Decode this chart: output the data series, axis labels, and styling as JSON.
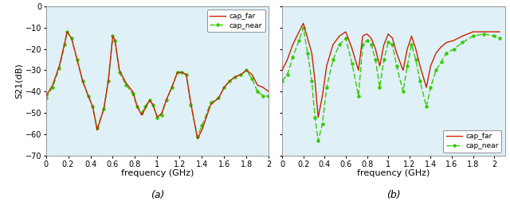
{
  "subplot_labels": [
    "(a)",
    "(b)"
  ],
  "xlabel": "frequency (GHz)",
  "ylabel": "S21(dB)",
  "ylim": [
    -70,
    0
  ],
  "yticks": [
    0,
    -10,
    -20,
    -30,
    -40,
    -50,
    -60,
    -70
  ],
  "xlim_a": [
    0,
    2.0
  ],
  "xlim_b": [
    0,
    2.1
  ],
  "xticks_a": [
    0,
    0.2,
    0.4,
    0.6,
    0.8,
    1.0,
    1.2,
    1.4,
    1.6,
    1.8,
    2.0
  ],
  "xticks_b": [
    0,
    0.2,
    0.4,
    0.6,
    0.8,
    1.0,
    1.2,
    1.4,
    1.6,
    1.8,
    2.0
  ],
  "legend_labels": [
    "cap_far",
    "cap_near"
  ],
  "color_far": "#cc2200",
  "color_near": "#33cc00",
  "bg_color": "#dff0f7",
  "line_width": 1.0,
  "far_a_x": [
    0.0,
    0.06,
    0.12,
    0.17,
    0.19,
    0.23,
    0.28,
    0.33,
    0.38,
    0.42,
    0.46,
    0.52,
    0.56,
    0.6,
    0.62,
    0.66,
    0.72,
    0.78,
    0.82,
    0.86,
    0.89,
    0.93,
    0.96,
    1.0,
    1.04,
    1.08,
    1.13,
    1.18,
    1.22,
    1.26,
    1.3,
    1.36,
    1.4,
    1.48,
    1.55,
    1.6,
    1.65,
    1.7,
    1.75,
    1.8,
    1.85,
    1.9,
    1.95,
    2.0
  ],
  "far_a_y": [
    -42,
    -37,
    -28,
    -17,
    -12,
    -15,
    -25,
    -35,
    -42,
    -47,
    -58,
    -48,
    -35,
    -14,
    -16,
    -30,
    -36,
    -40,
    -47,
    -51,
    -48,
    -44,
    -46,
    -52,
    -50,
    -44,
    -38,
    -31,
    -31,
    -32,
    -45,
    -62,
    -58,
    -46,
    -43,
    -38,
    -35,
    -33,
    -32,
    -30,
    -32,
    -37,
    -38,
    -40
  ],
  "near_a_x": [
    0.0,
    0.06,
    0.12,
    0.17,
    0.19,
    0.23,
    0.28,
    0.33,
    0.38,
    0.42,
    0.46,
    0.52,
    0.56,
    0.6,
    0.62,
    0.66,
    0.72,
    0.78,
    0.82,
    0.86,
    0.89,
    0.93,
    0.96,
    1.0,
    1.04,
    1.08,
    1.13,
    1.18,
    1.22,
    1.26,
    1.3,
    1.36,
    1.4,
    1.48,
    1.55,
    1.6,
    1.65,
    1.7,
    1.75,
    1.8,
    1.85,
    1.9,
    1.95,
    2.0
  ],
  "near_a_y": [
    -43,
    -38,
    -29,
    -18,
    -12,
    -15,
    -25,
    -35,
    -42,
    -47,
    -57,
    -48,
    -35,
    -14,
    -16,
    -31,
    -37,
    -41,
    -47,
    -50,
    -47,
    -44,
    -46,
    -52,
    -51,
    -44,
    -38,
    -31,
    -31,
    -32,
    -46,
    -61,
    -56,
    -45,
    -43,
    -38,
    -35,
    -33,
    -32,
    -30,
    -34,
    -40,
    -42,
    -42
  ],
  "far_b_x": [
    0.0,
    0.05,
    0.1,
    0.16,
    0.2,
    0.24,
    0.28,
    0.31,
    0.34,
    0.38,
    0.42,
    0.48,
    0.54,
    0.6,
    0.66,
    0.72,
    0.76,
    0.8,
    0.84,
    0.88,
    0.92,
    0.96,
    1.0,
    1.04,
    1.08,
    1.14,
    1.18,
    1.22,
    1.26,
    1.3,
    1.36,
    1.4,
    1.45,
    1.5,
    1.55,
    1.62,
    1.7,
    1.8,
    1.9,
    2.0,
    2.05
  ],
  "far_b_y": [
    -30,
    -25,
    -18,
    -12,
    -8,
    -15,
    -22,
    -35,
    -52,
    -42,
    -28,
    -18,
    -14,
    -12,
    -20,
    -30,
    -14,
    -13,
    -15,
    -20,
    -28,
    -18,
    -13,
    -15,
    -22,
    -30,
    -20,
    -14,
    -20,
    -28,
    -38,
    -28,
    -22,
    -19,
    -17,
    -16,
    -14,
    -12,
    -12,
    -12,
    -12
  ],
  "near_b_x": [
    0.0,
    0.05,
    0.1,
    0.16,
    0.2,
    0.24,
    0.28,
    0.31,
    0.34,
    0.38,
    0.42,
    0.48,
    0.54,
    0.6,
    0.66,
    0.72,
    0.76,
    0.8,
    0.84,
    0.88,
    0.92,
    0.96,
    1.0,
    1.04,
    1.08,
    1.14,
    1.18,
    1.22,
    1.26,
    1.3,
    1.36,
    1.4,
    1.45,
    1.5,
    1.55,
    1.62,
    1.7,
    1.8,
    1.9,
    2.0,
    2.05
  ],
  "near_b_y": [
    -35,
    -32,
    -24,
    -16,
    -10,
    -22,
    -35,
    -52,
    -63,
    -55,
    -38,
    -25,
    -18,
    -15,
    -27,
    -42,
    -18,
    -16,
    -18,
    -25,
    -38,
    -25,
    -17,
    -18,
    -28,
    -40,
    -28,
    -18,
    -25,
    -35,
    -47,
    -38,
    -30,
    -26,
    -22,
    -20,
    -17,
    -14,
    -13,
    -14,
    -15
  ]
}
